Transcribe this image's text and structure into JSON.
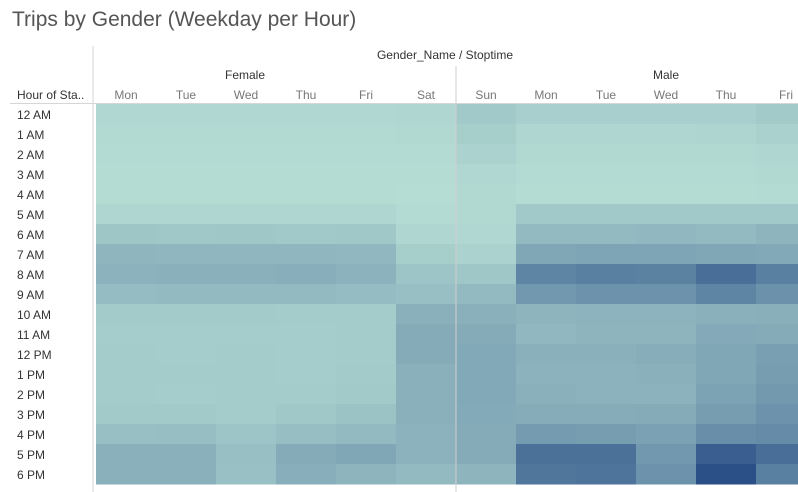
{
  "title": "Trips by Gender (Weekday per Hour)",
  "chart_data": {
    "type": "heatmap",
    "column_header": "Gender_Name / Stoptime",
    "row_header": "Hour of Sta..",
    "groups": [
      {
        "name": "Female",
        "days": [
          "Mon",
          "Tue",
          "Wed",
          "Thu",
          "Fri",
          "Sat"
        ]
      },
      {
        "name": "Male",
        "days": [
          "Sun",
          "Mon",
          "Tue",
          "Wed",
          "Thu",
          "Fri"
        ]
      }
    ],
    "rows": [
      "12 AM",
      "1 AM",
      "2 AM",
      "3 AM",
      "4 AM",
      "5 AM",
      "6 AM",
      "7 AM",
      "8 AM",
      "9 AM",
      "10 AM",
      "11 AM",
      "12 PM",
      "1 PM",
      "2 PM",
      "3 PM",
      "4 PM",
      "5 PM",
      "6 PM"
    ],
    "values": [
      [
        10,
        10,
        10,
        10,
        10,
        11,
        25,
        18,
        18,
        18,
        18,
        24
      ],
      [
        7,
        7,
        7,
        7,
        7,
        8,
        20,
        11,
        11,
        11,
        12,
        16
      ],
      [
        6,
        6,
        6,
        6,
        6,
        6,
        15,
        8,
        8,
        8,
        8,
        11
      ],
      [
        5,
        5,
        5,
        5,
        5,
        5,
        10,
        6,
        6,
        6,
        6,
        8
      ],
      [
        5,
        5,
        5,
        5,
        5,
        4,
        8,
        5,
        5,
        5,
        5,
        6
      ],
      [
        11,
        11,
        11,
        11,
        11,
        6,
        8,
        25,
        25,
        25,
        25,
        25
      ],
      [
        28,
        26,
        27,
        25,
        26,
        11,
        10,
        40,
        40,
        42,
        40,
        45
      ],
      [
        44,
        43,
        43,
        43,
        42,
        20,
        15,
        60,
        62,
        62,
        60,
        58
      ],
      [
        48,
        50,
        50,
        52,
        48,
        30,
        27,
        95,
        100,
        98,
        118,
        100
      ],
      [
        38,
        40,
        40,
        40,
        38,
        35,
        40,
        75,
        80,
        80,
        95,
        82
      ],
      [
        23,
        23,
        23,
        22,
        22,
        50,
        50,
        45,
        46,
        46,
        50,
        51
      ],
      [
        21,
        21,
        21,
        21,
        22,
        55,
        55,
        42,
        45,
        45,
        56,
        55
      ],
      [
        22,
        21,
        22,
        21,
        22,
        55,
        58,
        50,
        50,
        53,
        60,
        68
      ],
      [
        22,
        22,
        22,
        21,
        23,
        50,
        58,
        48,
        48,
        50,
        60,
        70
      ],
      [
        22,
        21,
        22,
        22,
        24,
        50,
        58,
        50,
        48,
        48,
        64,
        74
      ],
      [
        24,
        24,
        22,
        26,
        32,
        50,
        57,
        54,
        54,
        55,
        70,
        80
      ],
      [
        35,
        36,
        30,
        36,
        40,
        48,
        55,
        72,
        70,
        65,
        85,
        88
      ],
      [
        50,
        50,
        35,
        55,
        60,
        48,
        55,
        115,
        115,
        75,
        135,
        118
      ],
      [
        50,
        50,
        34,
        52,
        45,
        40,
        45,
        110,
        112,
        80,
        150,
        100
      ]
    ],
    "color_scale": {
      "min": 0,
      "max": 150,
      "low": "#b9e1d6",
      "high": "#2b4f87"
    }
  }
}
